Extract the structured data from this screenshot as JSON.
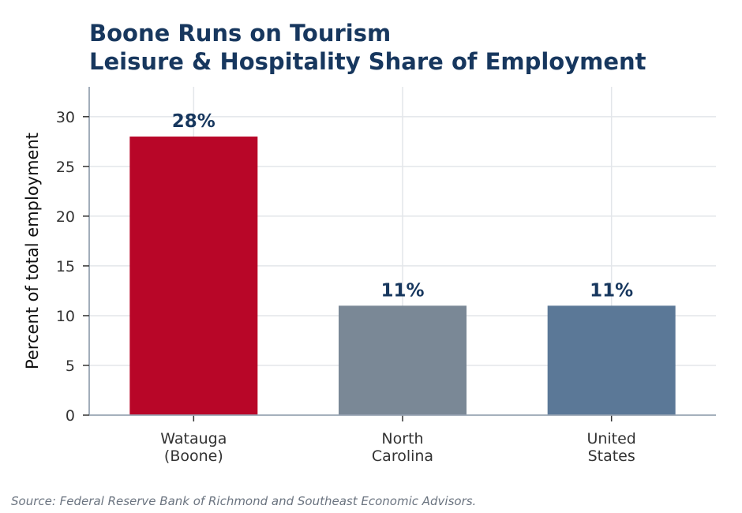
{
  "chart_data": {
    "type": "bar",
    "title": "Boone Runs on Tourism",
    "subtitle": "Leisure & Hospitality Share of Employment",
    "ylabel": "Percent of total employment",
    "xlabel": "",
    "categories": [
      [
        "Watauga",
        "(Boone)"
      ],
      [
        "North",
        "Carolina"
      ],
      [
        "United",
        "States"
      ]
    ],
    "values": [
      28,
      11,
      11
    ],
    "data_labels": [
      "28%",
      "11%",
      "11%"
    ],
    "bar_colors": [
      "#b80628",
      "#7a8896",
      "#5b7897"
    ],
    "ylim": [
      0,
      33
    ],
    "yticks": [
      0,
      5,
      10,
      15,
      20,
      25,
      30
    ],
    "ytick_labels": [
      "0",
      "5",
      "10",
      "15",
      "20",
      "25",
      "30"
    ],
    "grid": true,
    "legend": "none"
  },
  "source": "Source: Federal Reserve Bank of Richmond and Southeast Economic Advisors."
}
